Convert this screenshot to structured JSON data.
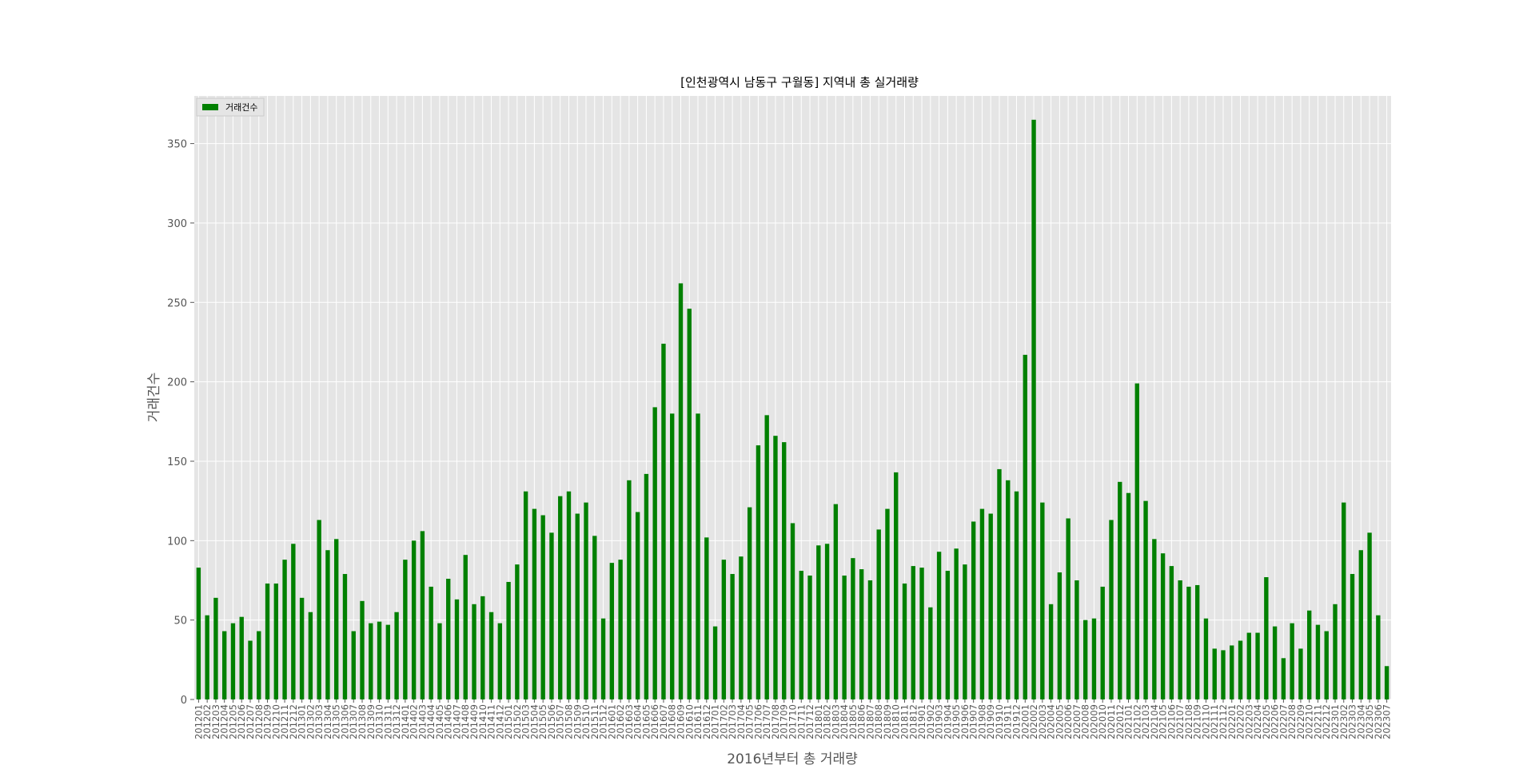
{
  "chart_data": {
    "type": "bar",
    "title": "[인천광역시 남동구 구월동] 지역내 총 실거래량",
    "xlabel": "2016년부터 총 거래량",
    "ylabel": "거래건수",
    "legend": {
      "label": "거래건수",
      "placement": "top-left"
    },
    "bar_color": "#008000",
    "background_color": "#e5e5e5",
    "grid": true,
    "ylim": [
      0,
      380
    ],
    "yticks": [
      0,
      50,
      100,
      150,
      200,
      250,
      300,
      350
    ],
    "categories": [
      "201201",
      "201202",
      "201203",
      "201204",
      "201205",
      "201206",
      "201207",
      "201208",
      "201209",
      "201210",
      "201211",
      "201212",
      "201301",
      "201302",
      "201303",
      "201304",
      "201305",
      "201306",
      "201307",
      "201308",
      "201309",
      "201310",
      "201311",
      "201312",
      "201401",
      "201402",
      "201403",
      "201404",
      "201405",
      "201406",
      "201407",
      "201408",
      "201409",
      "201410",
      "201411",
      "201412",
      "201501",
      "201502",
      "201503",
      "201504",
      "201505",
      "201506",
      "201507",
      "201508",
      "201509",
      "201510",
      "201511",
      "201512",
      "201601",
      "201602",
      "201603",
      "201604",
      "201605",
      "201606",
      "201607",
      "201608",
      "201609",
      "201610",
      "201611",
      "201612",
      "201701",
      "201702",
      "201703",
      "201704",
      "201705",
      "201706",
      "201707",
      "201708",
      "201709",
      "201710",
      "201711",
      "201712",
      "201801",
      "201802",
      "201803",
      "201804",
      "201805",
      "201806",
      "201807",
      "201808",
      "201809",
      "201810",
      "201811",
      "201812",
      "201901",
      "201902",
      "201903",
      "201904",
      "201905",
      "201906",
      "201907",
      "201908",
      "201909",
      "201910",
      "201911",
      "201912",
      "202001",
      "202002",
      "202003",
      "202004",
      "202005",
      "202006",
      "202007",
      "202008",
      "202009",
      "202010",
      "202011",
      "202012",
      "202101",
      "202102",
      "202103",
      "202104",
      "202105",
      "202106",
      "202107",
      "202108",
      "202109",
      "202110",
      "202111",
      "202112",
      "202201",
      "202202",
      "202203",
      "202204",
      "202205",
      "202206",
      "202207",
      "202208",
      "202209",
      "202210",
      "202211",
      "202212",
      "202301",
      "202302",
      "202303",
      "202304",
      "202305",
      "202306",
      "202307"
    ],
    "values": [
      83,
      53,
      64,
      43,
      48,
      52,
      37,
      43,
      73,
      73,
      88,
      98,
      64,
      55,
      113,
      94,
      101,
      79,
      43,
      62,
      48,
      49,
      47,
      55,
      88,
      100,
      106,
      71,
      48,
      76,
      63,
      91,
      60,
      65,
      55,
      48,
      74,
      85,
      131,
      120,
      116,
      105,
      128,
      131,
      117,
      124,
      103,
      51,
      86,
      88,
      138,
      118,
      142,
      184,
      224,
      180,
      262,
      246,
      180,
      102,
      46,
      88,
      79,
      90,
      121,
      160,
      179,
      166,
      162,
      111,
      81,
      78,
      97,
      98,
      123,
      78,
      89,
      82,
      75,
      107,
      120,
      143,
      73,
      84,
      83,
      58,
      93,
      81,
      95,
      85,
      112,
      120,
      117,
      145,
      138,
      131,
      217,
      365,
      124,
      60,
      80,
      114,
      75,
      50,
      51,
      71,
      113,
      137,
      130,
      199,
      125,
      101,
      92,
      84,
      75,
      71,
      72,
      51,
      32,
      31,
      34,
      37,
      42,
      42,
      77,
      46,
      26,
      48,
      32,
      56,
      47,
      43,
      60,
      124,
      79,
      94,
      105,
      53,
      21
    ]
  }
}
